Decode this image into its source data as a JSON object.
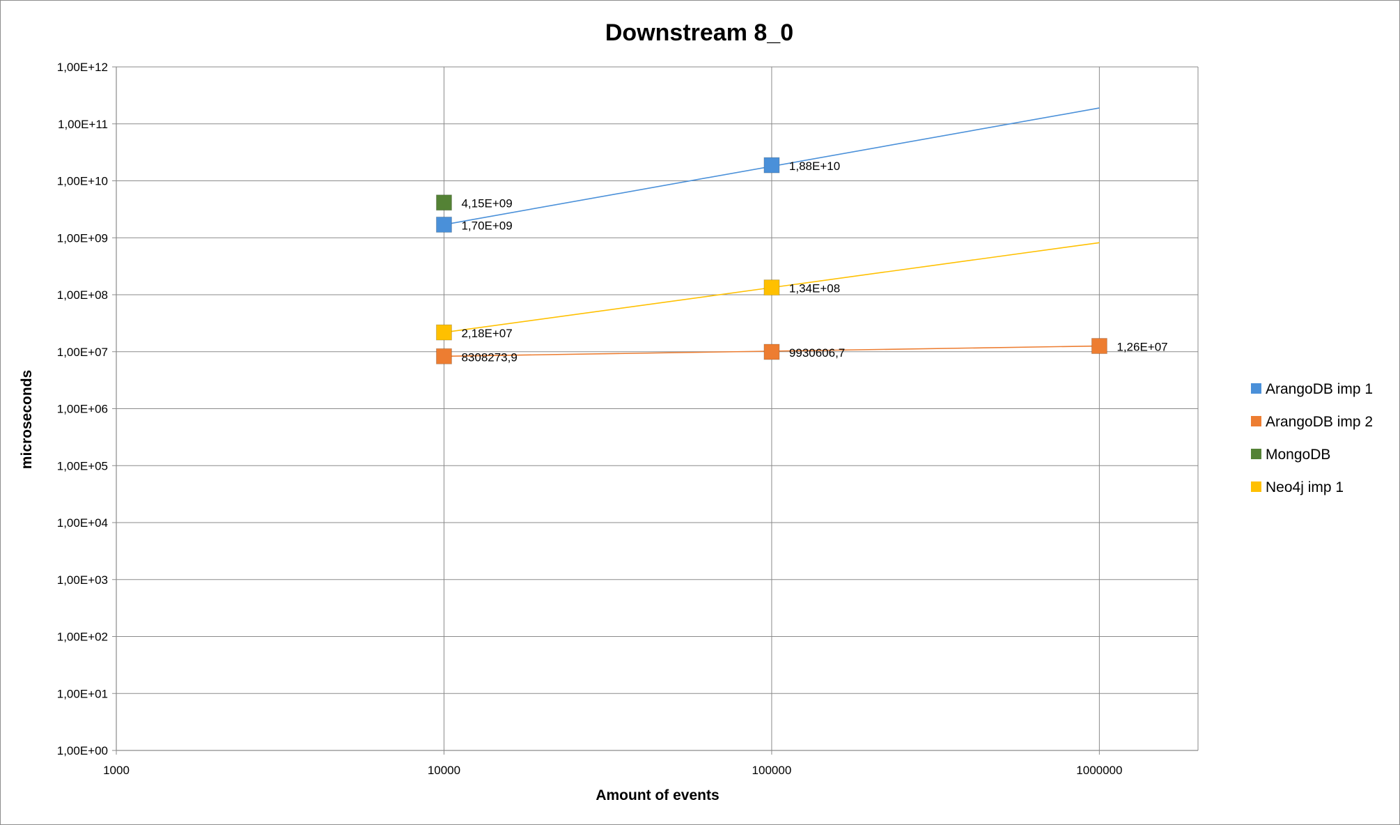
{
  "chart_data": {
    "type": "scatter",
    "title": "Downstream 8_0",
    "xlabel": "Amount of events",
    "ylabel": "microseconds",
    "x_scale": "log",
    "y_scale": "log",
    "xlim": [
      1000,
      2000000
    ],
    "ylim": [
      1,
      1000000000000
    ],
    "x_ticks": [
      "1000",
      "10000",
      "100000",
      "1000000"
    ],
    "y_ticks": [
      "1,00E+00",
      "1,00E+01",
      "1,00E+02",
      "1,00E+03",
      "1,00E+04",
      "1,00E+05",
      "1,00E+06",
      "1,00E+07",
      "1,00E+08",
      "1,00E+09",
      "1,00E+10",
      "1,00E+11",
      "1,00E+12"
    ],
    "grid": true,
    "legend_position": "right",
    "series": [
      {
        "name": "ArangoDB imp 1",
        "color": "#4a90d9",
        "points": [
          {
            "x": 10000,
            "y": 1700000000,
            "label": "1,70E+09"
          },
          {
            "x": 100000,
            "y": 18800000000,
            "label": "1,88E+10"
          }
        ],
        "trendline": [
          [
            10000,
            1700000000
          ],
          [
            1000000,
            190000000000
          ]
        ]
      },
      {
        "name": "ArangoDB imp 2",
        "color": "#ed7d31",
        "points": [
          {
            "x": 10000,
            "y": 8308273.9,
            "label": "8308273,9"
          },
          {
            "x": 100000,
            "y": 9930606.7,
            "label": "9930606,7"
          },
          {
            "x": 1000000,
            "y": 12600000,
            "label": "1,26E+07"
          }
        ],
        "trendline": [
          [
            10000,
            8308273.9
          ],
          [
            1000000,
            12600000
          ]
        ]
      },
      {
        "name": "MongoDB",
        "color": "#548235",
        "points": [
          {
            "x": 10000,
            "y": 4150000000,
            "label": "4,15E+09"
          }
        ],
        "trendline": []
      },
      {
        "name": "Neo4j imp 1",
        "color": "#ffc000",
        "points": [
          {
            "x": 10000,
            "y": 21800000,
            "label": "2,18E+07"
          },
          {
            "x": 100000,
            "y": 134000000,
            "label": "1,34E+08"
          }
        ],
        "trendline": [
          [
            10000,
            21800000
          ],
          [
            1000000,
            820000000
          ]
        ]
      }
    ]
  }
}
